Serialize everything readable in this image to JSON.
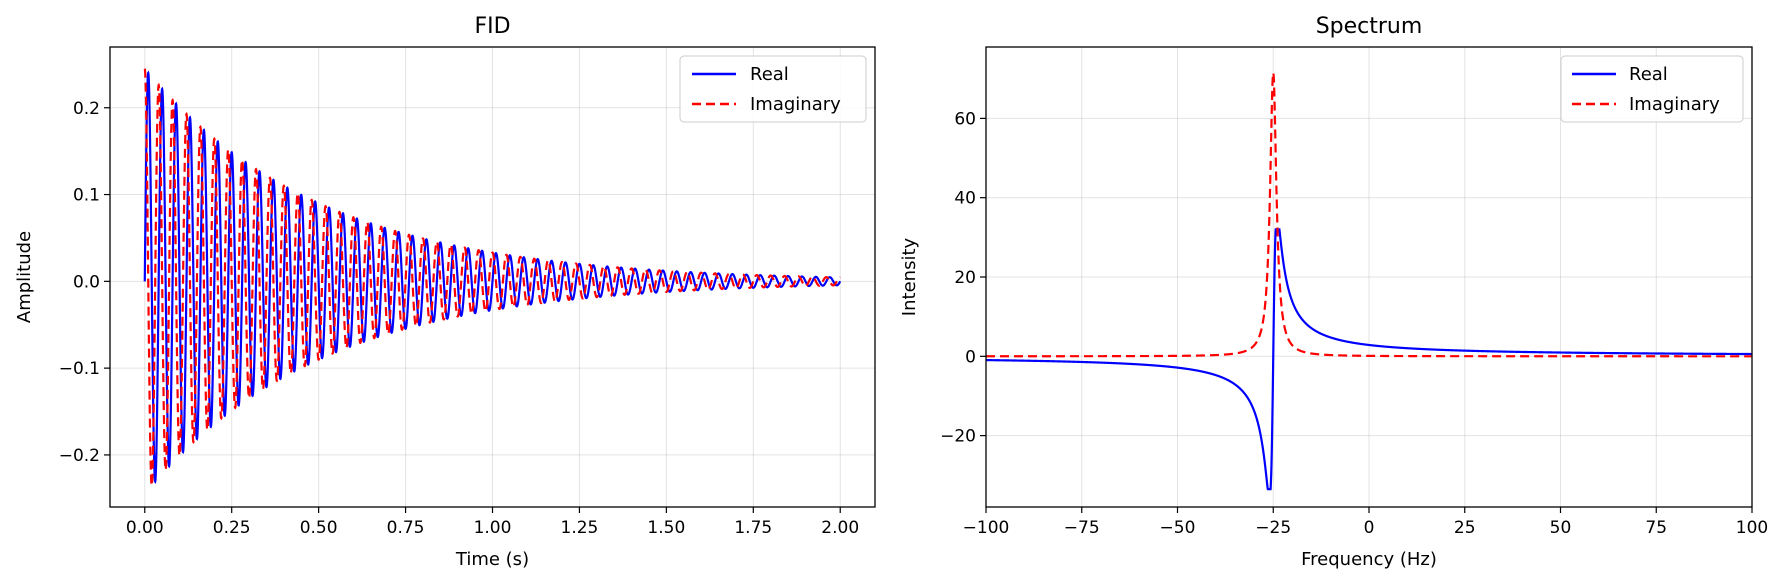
{
  "chart_data": [
    {
      "type": "line",
      "title": "FID",
      "xlabel": "Time (s)",
      "ylabel": "Amplitude",
      "xlim": [
        -0.1,
        2.1
      ],
      "ylim": [
        -0.26,
        0.27
      ],
      "xticks": [
        "0.00",
        "0.25",
        "0.50",
        "0.75",
        "1.00",
        "1.25",
        "1.50",
        "1.75",
        "2.00"
      ],
      "yticks": [
        "−0.2",
        "−0.1",
        "0.0",
        "0.1",
        "0.2"
      ],
      "grid": true,
      "legend": "top-right",
      "signal": {
        "amplitude0": 0.245,
        "frequency_hz": -25,
        "decay_time_s": 0.5,
        "t_start": 0,
        "t_end": 2.0
      },
      "series": [
        {
          "name": "Real",
          "color": "#0000ff",
          "style": "solid"
        },
        {
          "name": "Imaginary",
          "color": "#ff0000",
          "style": "dashed"
        }
      ]
    },
    {
      "type": "line",
      "title": "Spectrum",
      "xlabel": "Frequency (Hz)",
      "ylabel": "Intensity",
      "xlim": [
        -100,
        100
      ],
      "ylim": [
        -38,
        78
      ],
      "xticks": [
        "−100",
        "−75",
        "−50",
        "−25",
        "0",
        "25",
        "50",
        "75",
        "100"
      ],
      "yticks": [
        "−20",
        "0",
        "20",
        "40",
        "60"
      ],
      "grid": true,
      "legend": "top-right",
      "peak": {
        "center_hz": -25,
        "peak_height": 71.5,
        "dispersion_min": -33.5,
        "dispersion_max": 32
      },
      "series": [
        {
          "name": "Real",
          "color": "#0000ff",
          "style": "solid"
        },
        {
          "name": "Imaginary",
          "color": "#ff0000",
          "style": "dashed"
        }
      ]
    }
  ]
}
